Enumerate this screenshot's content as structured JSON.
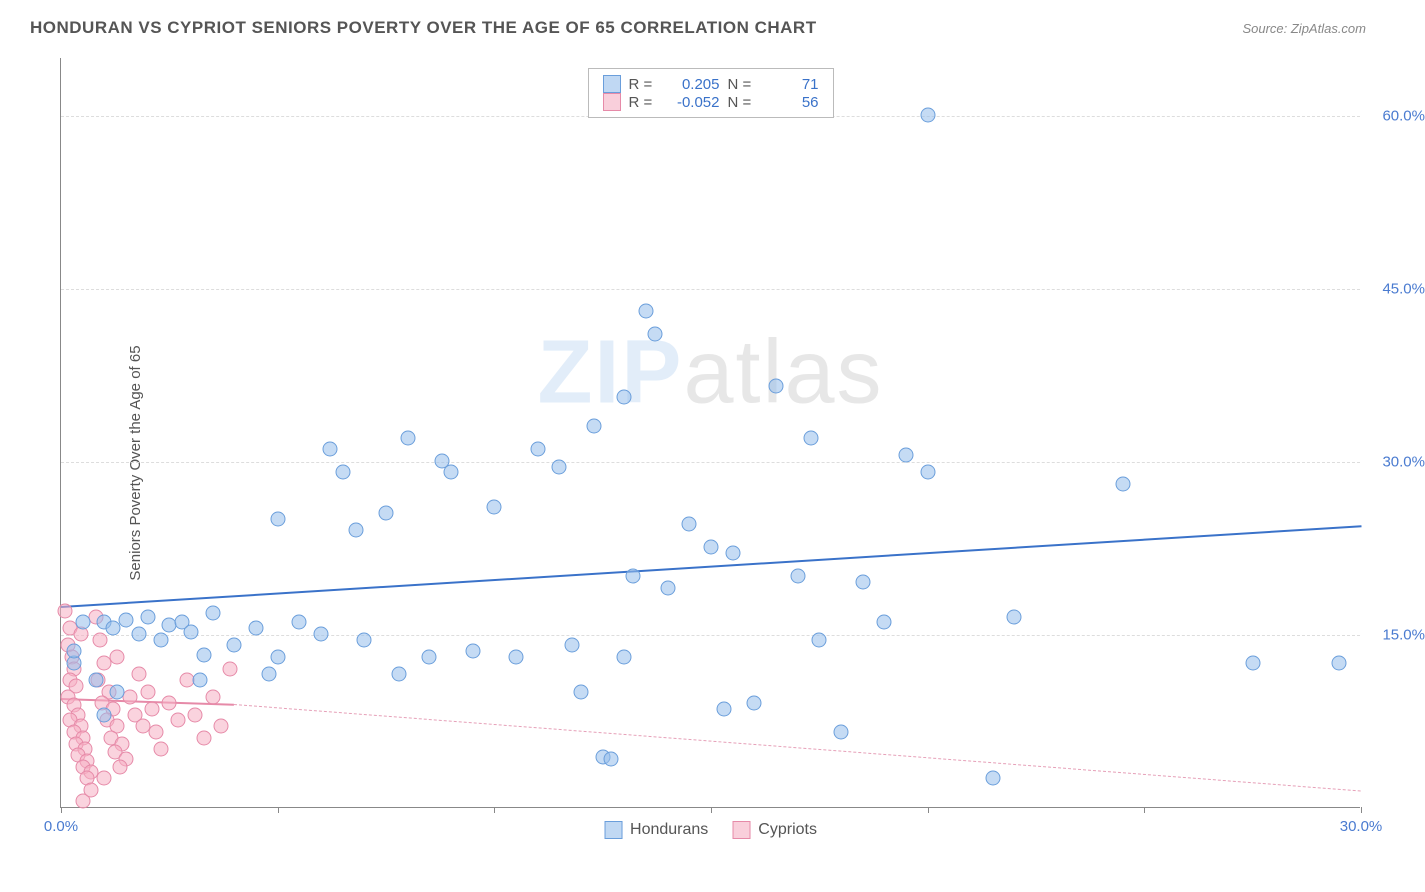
{
  "header": {
    "title": "HONDURAN VS CYPRIOT SENIORS POVERTY OVER THE AGE OF 65 CORRELATION CHART",
    "source_prefix": "Source: ",
    "source": "ZipAtlas.com"
  },
  "chart": {
    "type": "scatter",
    "y_label": "Seniors Poverty Over the Age of 65",
    "xlim": [
      0,
      30
    ],
    "ylim": [
      0,
      65
    ],
    "x_ticks": [
      0,
      5,
      10,
      15,
      20,
      25,
      30
    ],
    "x_tick_labels": {
      "0": "0.0%",
      "30": "30.0%"
    },
    "y_ticks": [
      15,
      30,
      45,
      60
    ],
    "y_tick_labels": {
      "15": "15.0%",
      "30": "30.0%",
      "45": "45.0%",
      "60": "60.0%"
    },
    "background_color": "#ffffff",
    "grid_color": "#dddddd",
    "series": {
      "hondurans": {
        "label": "Hondurans",
        "color_fill": "#a7c6eb",
        "color_stroke": "#6a9edb",
        "marker_size": 15,
        "R": "0.205",
        "N": "71",
        "trend": {
          "x0": 0,
          "y0": 17.5,
          "x1": 30,
          "y1": 24.5,
          "color": "#3a72c9",
          "width": 2.5
        },
        "points": [
          [
            0.3,
            12.5
          ],
          [
            0.5,
            16
          ],
          [
            0.3,
            13.5
          ],
          [
            1.0,
            16
          ],
          [
            1.2,
            15.5
          ],
          [
            1.5,
            16.2
          ],
          [
            1.8,
            15
          ],
          [
            2.0,
            16.5
          ],
          [
            2.3,
            14.5
          ],
          [
            2.5,
            15.8
          ],
          [
            2.8,
            16
          ],
          [
            3.0,
            15.2
          ],
          [
            3.3,
            13.2
          ],
          [
            3.5,
            16.8
          ],
          [
            4.0,
            14
          ],
          [
            4.5,
            15.5
          ],
          [
            5.0,
            13
          ],
          [
            5.5,
            16
          ],
          [
            6.0,
            15
          ],
          [
            5.0,
            25
          ],
          [
            6.2,
            31
          ],
          [
            6.5,
            29
          ],
          [
            7.0,
            14.5
          ],
          [
            7.5,
            25.5
          ],
          [
            8.0,
            32
          ],
          [
            8.5,
            13
          ],
          [
            9.0,
            29
          ],
          [
            9.5,
            13.5
          ],
          [
            10.0,
            26
          ],
          [
            10.5,
            13
          ],
          [
            11.0,
            31
          ],
          [
            11.5,
            29.5
          ],
          [
            12.0,
            10
          ],
          [
            12.5,
            4.3
          ],
          [
            12.7,
            4.2
          ],
          [
            13.0,
            13
          ],
          [
            13.5,
            43
          ],
          [
            13.7,
            41
          ],
          [
            13.0,
            35.5
          ],
          [
            14.0,
            19
          ],
          [
            14.5,
            24.5
          ],
          [
            15.0,
            22.5
          ],
          [
            15.5,
            22
          ],
          [
            16.0,
            9
          ],
          [
            16.5,
            36.5
          ],
          [
            17.0,
            20
          ],
          [
            17.5,
            14.5
          ],
          [
            18.0,
            6.5
          ],
          [
            18.5,
            19.5
          ],
          [
            19.0,
            16
          ],
          [
            19.5,
            30.5
          ],
          [
            20.0,
            60
          ],
          [
            20.0,
            29
          ],
          [
            21.5,
            2.5
          ],
          [
            22.0,
            16.5
          ],
          [
            24.5,
            28
          ],
          [
            27.5,
            12.5
          ],
          [
            29.5,
            12.5
          ],
          [
            0.8,
            11
          ],
          [
            1.0,
            8
          ],
          [
            1.3,
            10
          ],
          [
            4.8,
            11.5
          ],
          [
            6.8,
            24
          ],
          [
            7.8,
            11.5
          ],
          [
            3.2,
            11
          ],
          [
            8.8,
            30
          ],
          [
            11.8,
            14
          ],
          [
            12.3,
            33
          ],
          [
            15.3,
            8.5
          ],
          [
            17.3,
            32
          ],
          [
            13.2,
            20
          ]
        ]
      },
      "cypriots": {
        "label": "Cypriots",
        "color_fill": "#f5b6c9",
        "color_stroke": "#e68aa8",
        "marker_size": 15,
        "R": "-0.052",
        "N": "56",
        "trend_solid": {
          "x0": 0,
          "y0": 9.5,
          "x1": 4.0,
          "y1": 9.0,
          "color": "#e68aa8",
          "width": 2
        },
        "trend_dash": {
          "x0": 4.0,
          "y0": 9.0,
          "x1": 30,
          "y1": 1.5,
          "color": "#e6a0b8",
          "width": 1.5
        },
        "points": [
          [
            0.1,
            17
          ],
          [
            0.2,
            15.5
          ],
          [
            0.15,
            14
          ],
          [
            0.25,
            13
          ],
          [
            0.3,
            12
          ],
          [
            0.2,
            11
          ],
          [
            0.35,
            10.5
          ],
          [
            0.15,
            9.5
          ],
          [
            0.3,
            8.8
          ],
          [
            0.4,
            8
          ],
          [
            0.2,
            7.5
          ],
          [
            0.45,
            7
          ],
          [
            0.3,
            6.5
          ],
          [
            0.5,
            6
          ],
          [
            0.35,
            5.5
          ],
          [
            0.55,
            5
          ],
          [
            0.4,
            4.5
          ],
          [
            0.6,
            4
          ],
          [
            0.5,
            3.5
          ],
          [
            0.7,
            3
          ],
          [
            0.6,
            2.5
          ],
          [
            0.8,
            16.5
          ],
          [
            0.9,
            14.5
          ],
          [
            1.0,
            12.5
          ],
          [
            0.85,
            11
          ],
          [
            1.1,
            10
          ],
          [
            0.95,
            9
          ],
          [
            1.2,
            8.5
          ],
          [
            1.05,
            7.5
          ],
          [
            1.3,
            7
          ],
          [
            1.15,
            6
          ],
          [
            1.4,
            5.5
          ],
          [
            1.25,
            4.8
          ],
          [
            1.5,
            4.2
          ],
          [
            1.35,
            3.5
          ],
          [
            1.6,
            9.5
          ],
          [
            1.7,
            8
          ],
          [
            1.8,
            11.5
          ],
          [
            1.9,
            7
          ],
          [
            2.0,
            10
          ],
          [
            2.1,
            8.5
          ],
          [
            2.2,
            6.5
          ],
          [
            2.3,
            5
          ],
          [
            2.5,
            9
          ],
          [
            2.7,
            7.5
          ],
          [
            2.9,
            11
          ],
          [
            3.1,
            8
          ],
          [
            3.3,
            6
          ],
          [
            3.5,
            9.5
          ],
          [
            3.7,
            7
          ],
          [
            3.9,
            12
          ],
          [
            0.5,
            0.5
          ],
          [
            0.7,
            1.5
          ],
          [
            1.0,
            2.5
          ],
          [
            1.3,
            13
          ],
          [
            0.45,
            15
          ]
        ]
      }
    },
    "legend_top": {
      "R_label": "R =",
      "N_label": "N ="
    },
    "watermark": {
      "bold": "ZIP",
      "thin": "atlas"
    }
  }
}
